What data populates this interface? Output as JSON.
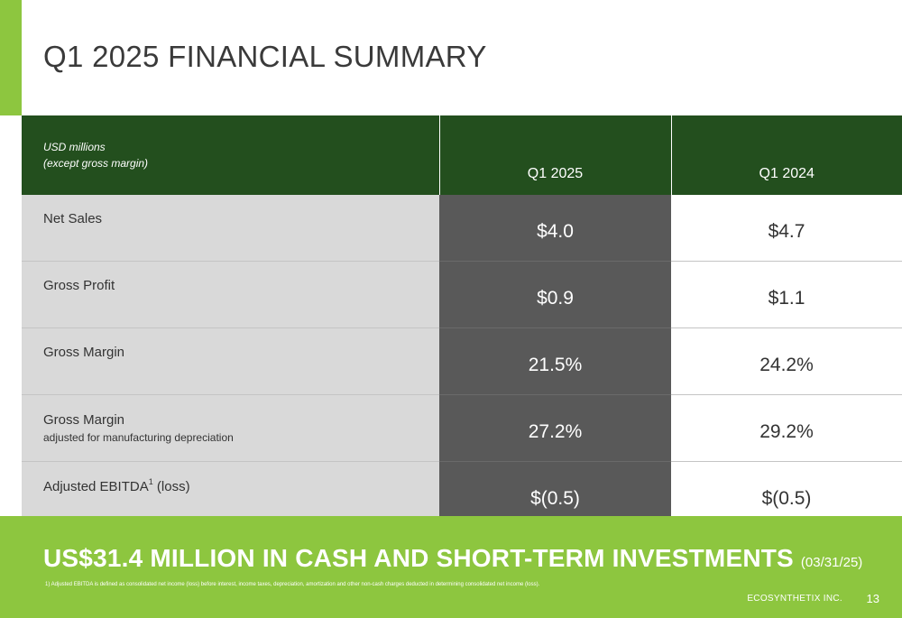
{
  "title": "Q1 2025 FINANCIAL SUMMARY",
  "table": {
    "unit_line1": "USD millions",
    "unit_line2": "(except gross margin)",
    "columns": [
      "Q1 2025",
      "Q1 2024"
    ],
    "rows": [
      {
        "label": "Net Sales",
        "sublabel": "",
        "q1_2025": "$4.0",
        "q1_2024": "$4.7"
      },
      {
        "label": "Gross Profit",
        "sublabel": "",
        "q1_2025": "$0.9",
        "q1_2024": "$1.1"
      },
      {
        "label": "Gross Margin",
        "sublabel": "",
        "q1_2025": "21.5%",
        "q1_2024": "24.2%"
      },
      {
        "label": "Gross Margin",
        "sublabel": "adjusted for manufacturing depreciation",
        "q1_2025": "27.2%",
        "q1_2024": "29.2%"
      },
      {
        "label": "Adjusted EBITDA",
        "label_sup": "1",
        "label_suffix": " (loss)",
        "sublabel": "",
        "q1_2025": "$(0.5)",
        "q1_2024": "$(0.5)"
      }
    ]
  },
  "highlight": {
    "text": "US$31.4 MILLION IN CASH AND SHORT-TERM INVESTMENTS",
    "date": "(03/31/25)"
  },
  "footnote": "1) Adjusted EBITDA is defined as consolidated net income (loss) before interest, income taxes, depreciation, amortization and other non-cash charges deducted in determining consolidated net income (loss).",
  "footer": {
    "company": "ECOSYNTHETIX INC.",
    "page_number": "13"
  },
  "colors": {
    "accent_green": "#8dc63f",
    "header_dark_green": "#234f1e",
    "current_period_gray": "#595959",
    "label_gray": "#d9d9d9"
  }
}
